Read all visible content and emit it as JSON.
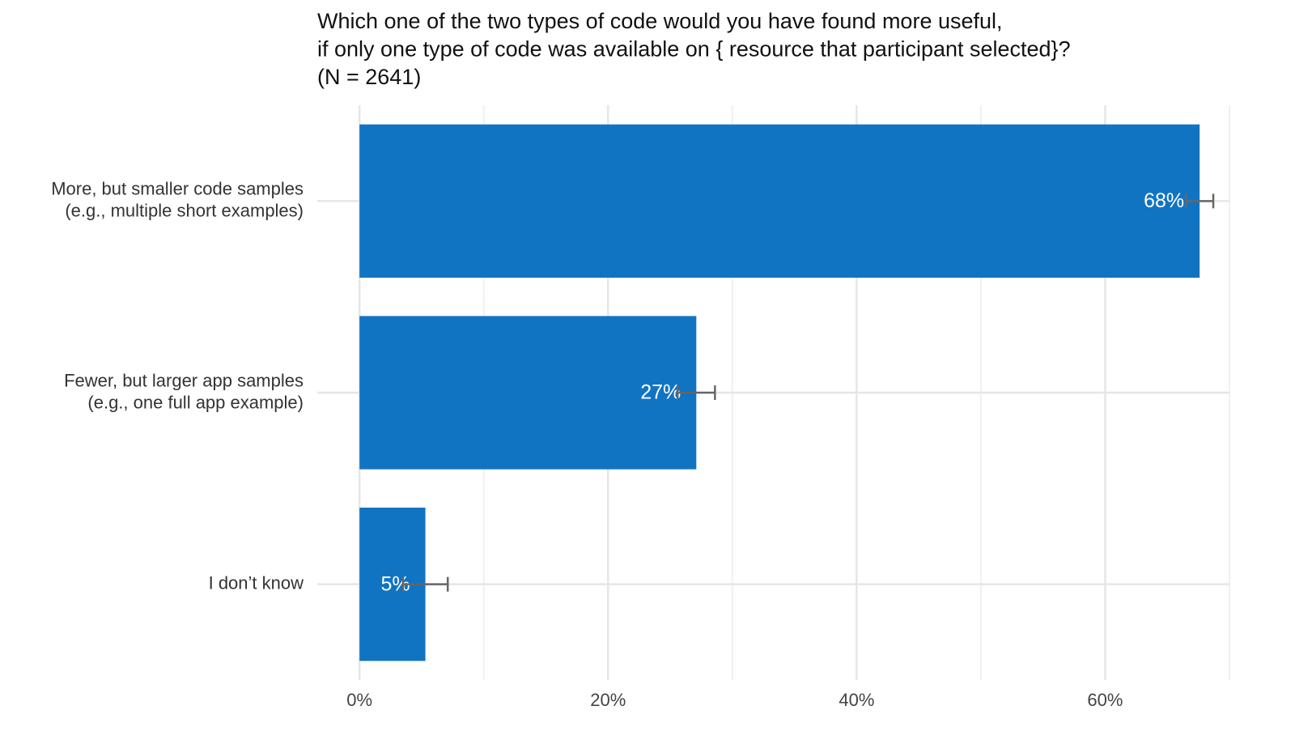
{
  "chart_data": {
    "type": "bar",
    "orientation": "horizontal",
    "title": [
      "Which one of the two types of code would you have found more useful,",
      "if only one type of code was available on { resource that participant selected}?",
      "(N = 2641)"
    ],
    "categories": [
      [
        "More, but smaller code samples",
        "(e.g., multiple short examples)"
      ],
      [
        "Fewer, but larger app samples",
        "(e.g., one full app example)"
      ],
      [
        "I don’t know"
      ]
    ],
    "values": [
      67.6,
      27.1,
      5.3
    ],
    "value_labels": [
      "68%",
      "27%",
      "5%"
    ],
    "errors": [
      1.1,
      1.5,
      1.8
    ],
    "color": "#1174c3",
    "error_color": "#666666",
    "xlim": [
      -3.4,
      70
    ],
    "xticks": [
      {
        "value": 0,
        "label": "0%"
      },
      {
        "value": 20,
        "label": "20%"
      },
      {
        "value": 40,
        "label": "40%"
      },
      {
        "value": 60,
        "label": "60%"
      }
    ],
    "xminorticks": [
      10,
      30,
      50,
      70
    ],
    "grid": true
  }
}
